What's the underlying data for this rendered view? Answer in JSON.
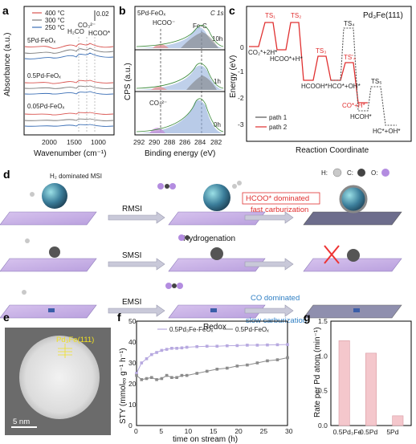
{
  "panels": {
    "a": {
      "label": "a",
      "xlabel": "Wavenumber (cm⁻¹)",
      "ylabel": "Absorbance (a.u.)",
      "xticks": [
        "2000",
        "1500",
        "1000"
      ],
      "scale_note": "0.02",
      "legend": [
        {
          "name": "400 °C",
          "color": "#d9534f"
        },
        {
          "name": "300 °C",
          "color": "#7a7a7a"
        },
        {
          "name": "250 °C",
          "color": "#3b6fb6"
        }
      ],
      "annotations": [
        "H₂CO",
        "CO₃²⁻",
        "HCOO*"
      ],
      "sample_labels": [
        "5Pd-FeOₓ",
        "0.5Pd-FeOₓ",
        "0.05Pd-FeOₓ"
      ]
    },
    "b": {
      "label": "b",
      "title": "5Pd-FeOₓ",
      "subtitle": "C 1s",
      "xlabel": "Binding energy (eV)",
      "ylabel": "CPS (a.u.)",
      "xticks": [
        "292",
        "290",
        "288",
        "286",
        "284",
        "282"
      ],
      "annotations": [
        "HCOO⁻",
        "Fe-C",
        "CO₃²⁻"
      ],
      "times": [
        "10h",
        "1h",
        "0h"
      ]
    },
    "c": {
      "label": "c",
      "title": "Pd₃Fe(111)",
      "xlabel": "Reaction Coordinate",
      "ylabel": "Energy (eV)",
      "yticks": [
        "0",
        "-1",
        "-2",
        "-3"
      ],
      "legend": [
        {
          "name": "path 1",
          "color": "#555555"
        },
        {
          "name": "path 2",
          "color": "#e03030"
        }
      ],
      "species": [
        "CO₂*+2H*",
        "HCOO*+H*",
        "HCOOH*",
        "HCO*+OH*",
        "CO*+H*",
        "HCOH*",
        "HC*+OH*"
      ],
      "ts_labels": [
        "TS₁",
        "TS₂",
        "TS₃",
        "TS₄",
        "TS'₄",
        "TS₅"
      ]
    },
    "d": {
      "label": "d",
      "top_note": "H₂ dominated MSI",
      "rows": [
        "RMSI",
        "SMSI",
        "EMSI"
      ],
      "mid_top": "Hydrogenation",
      "mid_bottom": "Redox",
      "result1_a": "HCOO* dominated",
      "result1_b": "fast carburization",
      "result2_a": "CO dominated",
      "result2_b": "slow carburization",
      "key": [
        "H:",
        "C:",
        "O:"
      ]
    },
    "e": {
      "label": "e",
      "annotation": "Pd₃Fe(111)",
      "scalebar": "5 nm"
    },
    "f": {
      "label": "f",
      "xlabel": "time on stream (h)",
      "ylabel": "STY (mmolₑₒ g⁻¹ h⁻¹)",
      "xticks": [
        "0",
        "5",
        "10",
        "15",
        "20",
        "25",
        "30"
      ],
      "yticks": [
        "0",
        "10",
        "20",
        "30",
        "40",
        "50"
      ]
    },
    "g": {
      "label": "g",
      "ylabel": "Rate per Pd atom (min⁻¹)",
      "yticks": [
        "0.0",
        "0.5",
        "1.0",
        "1.5"
      ]
    }
  },
  "chart_data": [
    {
      "type": "line",
      "panel": "f",
      "xlabel": "time on stream (h)",
      "ylabel": "STY",
      "xlim": [
        0,
        30
      ],
      "ylim": [
        0,
        50
      ],
      "series": [
        {
          "name": "0.5Pd₃Fe-FeOₓ",
          "color": "#b7a9e0",
          "x": [
            0,
            1,
            2,
            3,
            4,
            5,
            6,
            7,
            8,
            9,
            10,
            12,
            14,
            16,
            18,
            20,
            22,
            24,
            26,
            28,
            30
          ],
          "y": [
            25,
            30,
            32,
            34,
            35,
            36,
            36.5,
            37,
            37,
            37.2,
            37.5,
            37.8,
            38,
            38,
            38.2,
            38.3,
            38.5,
            38.5,
            38.6,
            38.7,
            38.8
          ]
        },
        {
          "name": "0.5Pd-FeOₓ",
          "color": "#8c8c8c",
          "x": [
            0,
            1,
            2,
            3,
            4,
            5,
            6,
            7,
            8,
            9,
            10,
            12,
            14,
            16,
            18,
            20,
            22,
            24,
            26,
            28,
            30
          ],
          "y": [
            24,
            22,
            22.5,
            23,
            22,
            22.5,
            24,
            23,
            23,
            24,
            24,
            25,
            26,
            27,
            27.5,
            28.5,
            29,
            30,
            31,
            31.5,
            32.5
          ]
        }
      ]
    },
    {
      "type": "bar",
      "panel": "g",
      "categories": [
        "0.5Pd₃Fe",
        "0.5Pd",
        "5Pd"
      ],
      "values": [
        1.22,
        1.04,
        0.14
      ],
      "ylim": [
        0,
        1.5
      ],
      "ylabel": "Rate per Pd atom (min⁻¹)",
      "color": "#f4c7cc"
    }
  ]
}
